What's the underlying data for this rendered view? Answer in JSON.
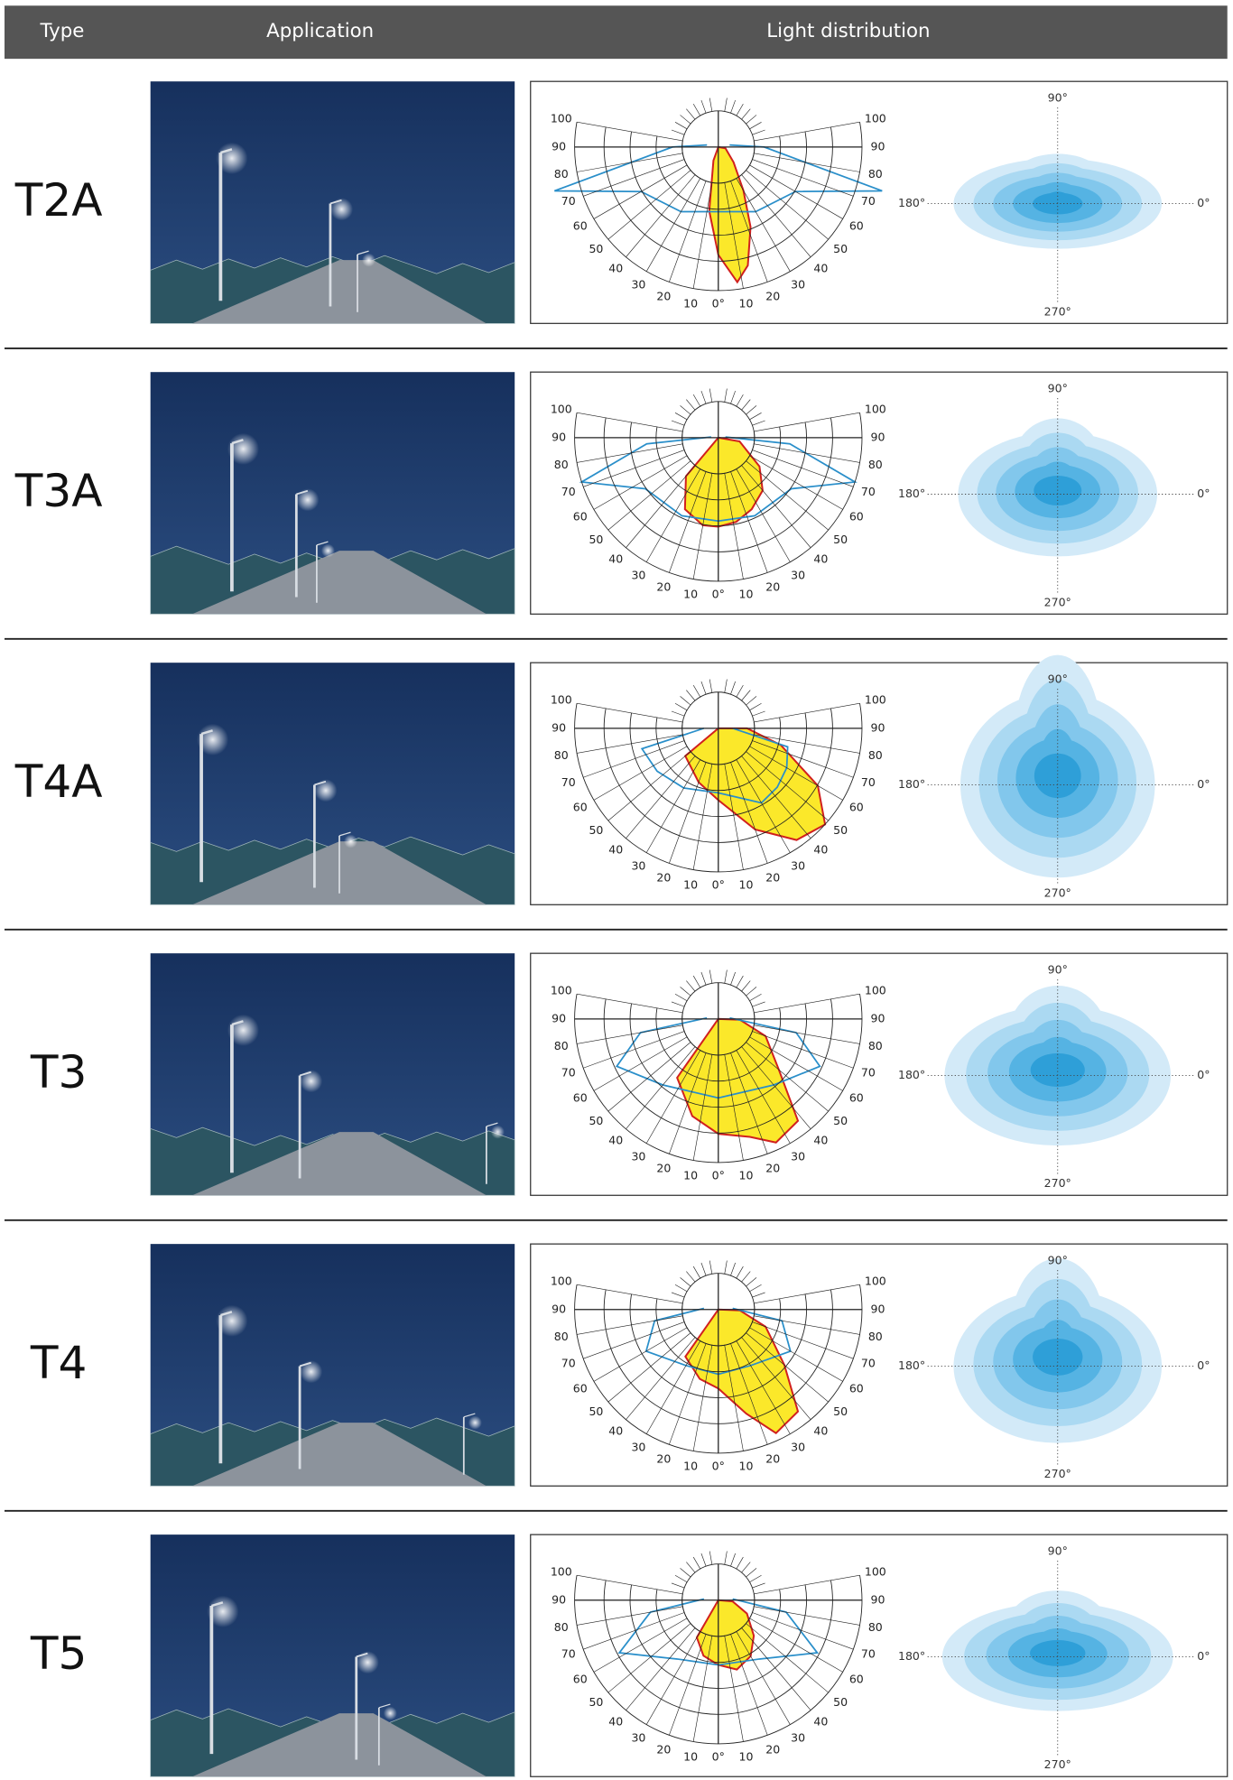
{
  "header": {
    "type": "Type",
    "application": "Application",
    "light_distribution": "Light distribution"
  },
  "rows": [
    {
      "type": "T2A"
    },
    {
      "type": "T3A"
    },
    {
      "type": "T4A"
    },
    {
      "type": "T3"
    },
    {
      "type": "T4"
    },
    {
      "type": "T5"
    }
  ],
  "polar_labels": {
    "angles": [
      10,
      20,
      30,
      40,
      50,
      60,
      70,
      80,
      90,
      100
    ],
    "zero": "0°"
  },
  "iso_labels": {
    "top": "90°",
    "left": "180°",
    "right": "0°",
    "bottom": "270°"
  }
}
